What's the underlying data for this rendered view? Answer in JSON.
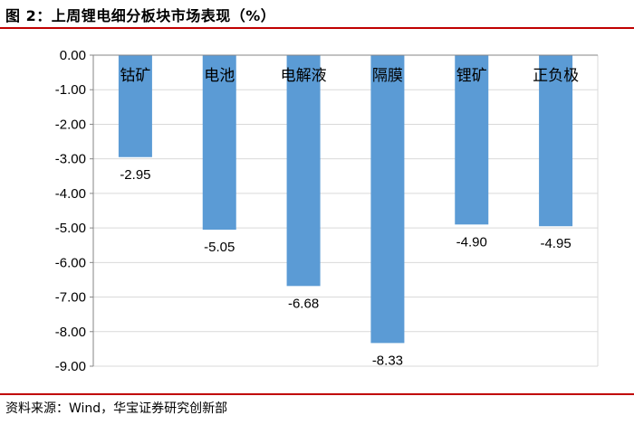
{
  "header": {
    "title": "图 2：上周锂电细分板块市场表现（%）"
  },
  "footer": {
    "source": "资料来源：Wind，华宝证券研究创新部"
  },
  "colors": {
    "bar": "#5b9bd5",
    "rule": "#c00000",
    "grid": "#d9d9d9",
    "axis": "#868686"
  },
  "chart_data": {
    "type": "bar",
    "categories": [
      "钴矿",
      "电池",
      "电解液",
      "隔膜",
      "锂矿",
      "正负极"
    ],
    "values": [
      -2.95,
      -5.05,
      -6.68,
      -8.33,
      -4.9,
      -4.95
    ],
    "data_labels": [
      "-2.95",
      "-5.05",
      "-6.68",
      "-8.33",
      "-4.90",
      "-4.95"
    ],
    "yticks": [
      "0.00",
      "-1.00",
      "-2.00",
      "-3.00",
      "-4.00",
      "-5.00",
      "-6.00",
      "-7.00",
      "-8.00",
      "-9.00"
    ],
    "ylim": [
      -9,
      0
    ],
    "grid": true,
    "category_labels_position": "top"
  }
}
